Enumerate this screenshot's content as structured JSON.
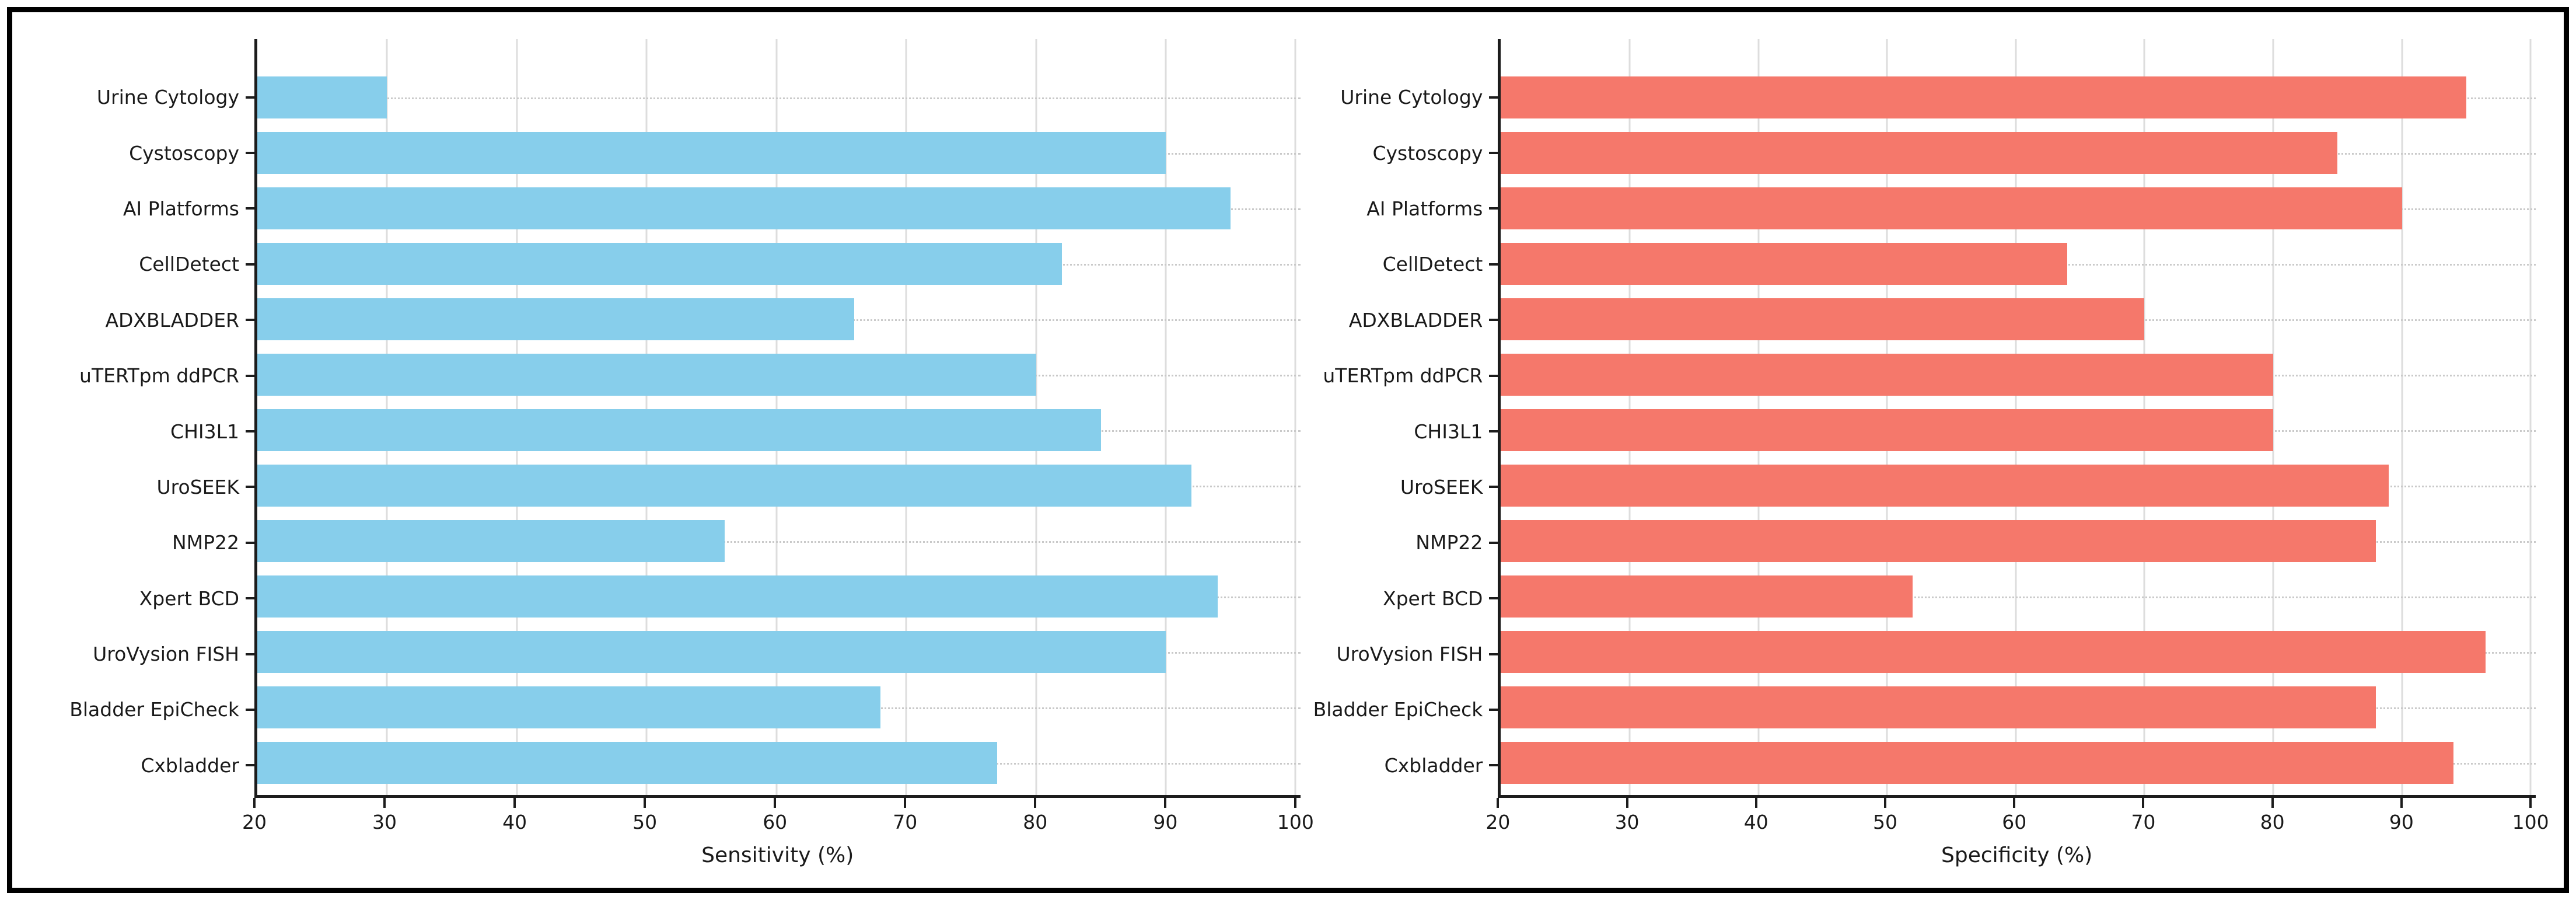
{
  "chart_data": [
    {
      "type": "bar",
      "orientation": "horizontal",
      "xlabel": "Sensitivity (%)",
      "bar_color": "#87CEEB",
      "xlim": [
        20,
        100
      ],
      "x_ticks": [
        20,
        30,
        40,
        50,
        60,
        70,
        80,
        90,
        100
      ],
      "grid": "vertical-solid-plus-horizontal-dotted",
      "legend": "none",
      "categories": [
        "Urine Cytology",
        "Cystoscopy",
        "AI Platforms",
        "CellDetect",
        "ADXBLADDER",
        "uTERTpm ddPCR",
        "CHI3L1",
        "UroSEEK",
        "NMP22",
        "Xpert BCD",
        "UroVysion FISH",
        "Bladder EpiCheck",
        "Cxbladder"
      ],
      "values": [
        30,
        90,
        95,
        82,
        66,
        80,
        85,
        92,
        56,
        94,
        90,
        68,
        77
      ]
    },
    {
      "type": "bar",
      "orientation": "horizontal",
      "xlabel": "Specificity (%)",
      "bar_color": "#F5786B",
      "xlim": [
        20,
        100
      ],
      "x_ticks": [
        20,
        30,
        40,
        50,
        60,
        70,
        80,
        90,
        100
      ],
      "grid": "vertical-solid-plus-horizontal-dotted",
      "legend": "none",
      "categories": [
        "Urine Cytology",
        "Cystoscopy",
        "AI Platforms",
        "CellDetect",
        "ADXBLADDER",
        "uTERTpm ddPCR",
        "CHI3L1",
        "UroSEEK",
        "NMP22",
        "Xpert BCD",
        "UroVysion FISH",
        "Bladder EpiCheck",
        "Cxbladder"
      ],
      "values": [
        95,
        85,
        90,
        64,
        70,
        80,
        80,
        89,
        88,
        52,
        96.5,
        88,
        94
      ]
    }
  ],
  "colors": {
    "sensitivity_bar": "#87CEEB",
    "specificity_bar": "#F5786B",
    "axis_spine": "#1c1c1c",
    "vertical_grid": "#dddddd",
    "horizontal_dotted_grid": "#c9c9c9",
    "frame_border": "#000000",
    "background": "#ffffff"
  }
}
